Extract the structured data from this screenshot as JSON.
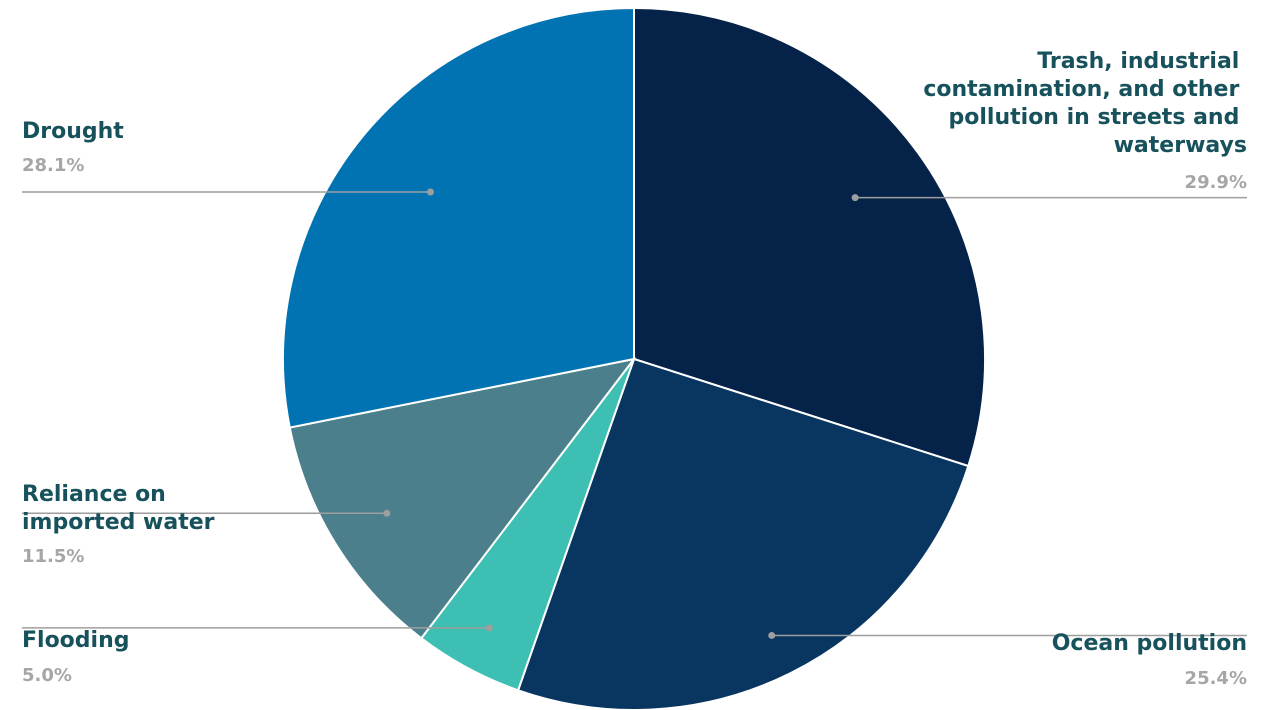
{
  "chart_data": {
    "type": "pie",
    "slices": [
      {
        "label": "Trash, industrial contamination, and other pollution in streets and waterways",
        "value": 29.9,
        "pct_text": "29.9%",
        "color": "#052348"
      },
      {
        "label": "Ocean pollution",
        "value": 25.4,
        "pct_text": "25.4%",
        "color": "#093561"
      },
      {
        "label": "Flooding",
        "value": 5.0,
        "pct_text": "5.0%",
        "color": "#3ebfb3"
      },
      {
        "label": "Reliance on imported water",
        "value": 11.5,
        "pct_text": "11.5%",
        "color": "#4a7f8b"
      },
      {
        "label": "Drought",
        "value": 28.1,
        "pct_text": "28.1%",
        "color": "#0173b3"
      }
    ],
    "start_angle": "12 o'clock",
    "direction": "clockwise",
    "label_color": "#17525c",
    "percent_color": "#a6a6a6",
    "leader_color": "#9e9e9e"
  }
}
